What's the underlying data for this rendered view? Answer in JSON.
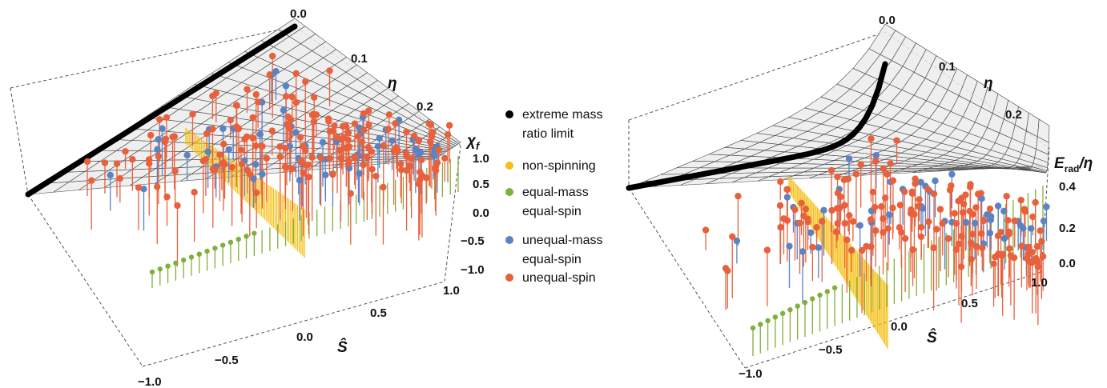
{
  "colors": {
    "emr": "#000000",
    "nonspin": "#f5bf14",
    "equal_mass_equal_spin": "#7fb03a",
    "unequal_mass_equal_spin": "#5b82c3",
    "unequal_spin": "#e8603c"
  },
  "legend": [
    {
      "key": "emr",
      "lines": [
        "extreme mass",
        "ratio limit"
      ]
    },
    {
      "key": "nonspin",
      "lines": [
        "non-spinning"
      ]
    },
    {
      "key": "equal_mass_equal_spin",
      "lines": [
        "equal-mass",
        "equal-spin"
      ]
    },
    {
      "key": "unequal_mass_equal_spin",
      "lines": [
        "unequal-mass",
        "equal-spin"
      ]
    },
    {
      "key": "unequal_spin",
      "lines": [
        "unequal-spin"
      ]
    }
  ],
  "chart_data": [
    {
      "type": "scatter",
      "title": "",
      "xlabel": "Ŝ",
      "ylabel": "η",
      "zlabel": "χ",
      "zlabel_sub": "f",
      "x_ticks": [
        "−1.0",
        "−0.5",
        "0.0",
        "0.5",
        "1.0"
      ],
      "y_ticks": [
        "0.0",
        "0.1",
        "0.2"
      ],
      "z_ticks": [
        "1.0",
        "0.5",
        "0.0",
        "−0.5",
        "−1.0"
      ],
      "xlim": [
        -1.0,
        1.0
      ],
      "ylim": [
        0.0,
        0.25
      ],
      "zlim": [
        -1.0,
        1.0
      ]
    },
    {
      "type": "scatter",
      "title": "",
      "xlabel": "Ŝ",
      "ylabel": "η",
      "zlabel": "E",
      "zlabel_sub": "rad",
      "zlabel_tail": "/η",
      "x_ticks": [
        "−1.0",
        "−0.5",
        "0.0",
        "0.5",
        "1.0"
      ],
      "y_ticks": [
        "0.0",
        "0.1",
        "0.2"
      ],
      "z_ticks": [
        "0.4",
        "0.2",
        "0.0"
      ],
      "xlim": [
        -1.0,
        1.0
      ],
      "ylim": [
        0.0,
        0.25
      ],
      "zlim": [
        0.0,
        0.5
      ]
    }
  ]
}
